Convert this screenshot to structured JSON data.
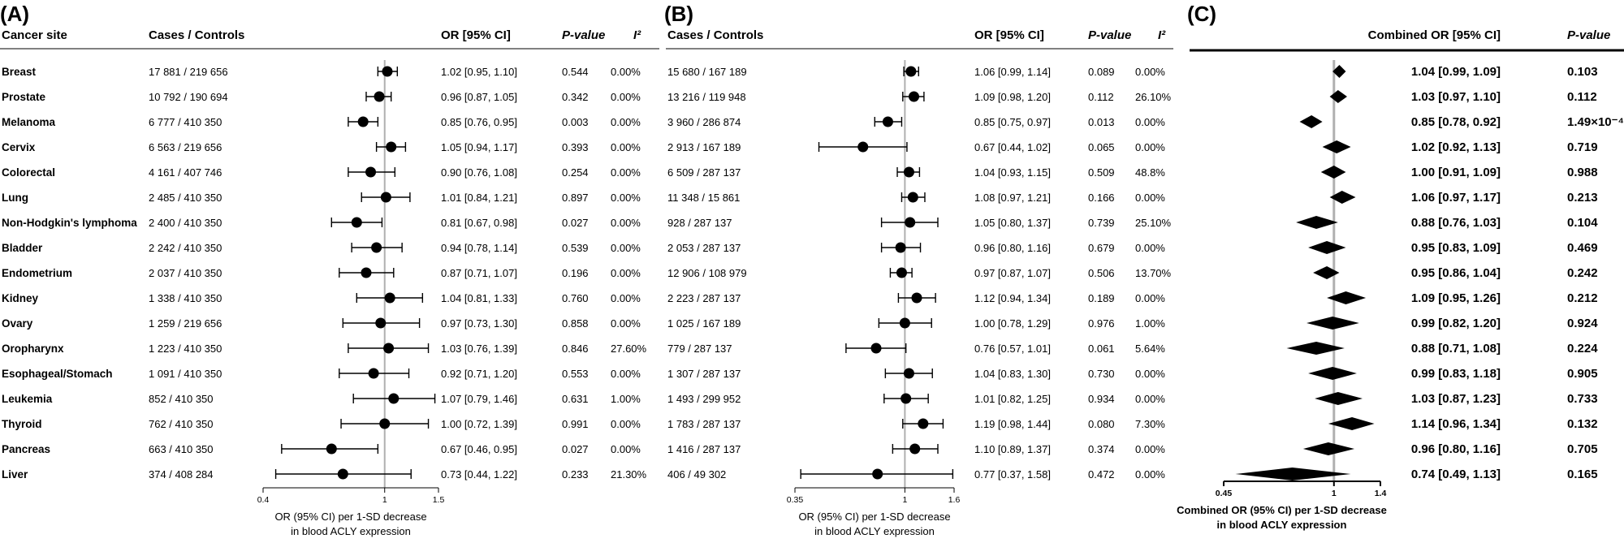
{
  "chart_data": [
    {
      "type": "forest",
      "panel_label": "(A)",
      "columns": {
        "site": "Cancer site",
        "cases": "Cases / Controls",
        "or": "OR [95% CI]",
        "p": "P-value",
        "i2": "I²"
      },
      "xlabel": [
        "OR (95% CI) per 1-SD decrease",
        "in blood ACLY expression"
      ],
      "ticks": [
        0.4,
        1,
        1.5
      ],
      "tick_labels": [
        "0.4",
        "1",
        "1.5"
      ],
      "xlim": [
        0.4,
        1.5
      ],
      "xscale": "log",
      "reference_line": 1,
      "rows": [
        {
          "site": "Breast",
          "cases": "17 881 / 219 656",
          "or": 1.02,
          "lo": 0.95,
          "hi": 1.1,
          "or_text": "1.02 [0.95, 1.10]",
          "p": "0.544",
          "i2": "0.00%"
        },
        {
          "site": "Prostate",
          "cases": "10 792 / 190 694",
          "or": 0.96,
          "lo": 0.87,
          "hi": 1.05,
          "or_text": "0.96 [0.87, 1.05]",
          "p": "0.342",
          "i2": "0.00%"
        },
        {
          "site": "Melanoma",
          "cases": "6 777 / 410 350",
          "or": 0.85,
          "lo": 0.76,
          "hi": 0.95,
          "or_text": "0.85 [0.76, 0.95]",
          "p": "0.003",
          "i2": "0.00%"
        },
        {
          "site": "Cervix",
          "cases": "6 563 / 219 656",
          "or": 1.05,
          "lo": 0.94,
          "hi": 1.17,
          "or_text": "1.05 [0.94, 1.17]",
          "p": "0.393",
          "i2": "0.00%"
        },
        {
          "site": "Colorectal",
          "cases": "4 161 / 407 746",
          "or": 0.9,
          "lo": 0.76,
          "hi": 1.08,
          "or_text": "0.90 [0.76, 1.08]",
          "p": "0.254",
          "i2": "0.00%"
        },
        {
          "site": "Lung",
          "cases": "2 485 / 410 350",
          "or": 1.01,
          "lo": 0.84,
          "hi": 1.21,
          "or_text": "1.01 [0.84, 1.21]",
          "p": "0.897",
          "i2": "0.00%"
        },
        {
          "site": "Non-Hodgkin's lymphoma",
          "cases": "2 400 / 410 350",
          "or": 0.81,
          "lo": 0.67,
          "hi": 0.98,
          "or_text": "0.81 [0.67, 0.98]",
          "p": "0.027",
          "i2": "0.00%"
        },
        {
          "site": "Bladder",
          "cases": "2 242 / 410 350",
          "or": 0.94,
          "lo": 0.78,
          "hi": 1.14,
          "or_text": "0.94 [0.78, 1.14]",
          "p": "0.539",
          "i2": "0.00%"
        },
        {
          "site": "Endometrium",
          "cases": "2 037 / 410 350",
          "or": 0.87,
          "lo": 0.71,
          "hi": 1.07,
          "or_text": "0.87 [0.71, 1.07]",
          "p": "0.196",
          "i2": "0.00%"
        },
        {
          "site": "Kidney",
          "cases": "1 338 / 410 350",
          "or": 1.04,
          "lo": 0.81,
          "hi": 1.33,
          "or_text": "1.04 [0.81, 1.33]",
          "p": "0.760",
          "i2": "0.00%"
        },
        {
          "site": "Ovary",
          "cases": "1 259 / 219 656",
          "or": 0.97,
          "lo": 0.73,
          "hi": 1.3,
          "or_text": "0.97 [0.73, 1.30]",
          "p": "0.858",
          "i2": "0.00%"
        },
        {
          "site": "Oropharynx",
          "cases": "1 223 / 410 350",
          "or": 1.03,
          "lo": 0.76,
          "hi": 1.39,
          "or_text": "1.03 [0.76, 1.39]",
          "p": "0.846",
          "i2": "27.60%"
        },
        {
          "site": "Esophageal/Stomach",
          "cases": "1 091 / 410 350",
          "or": 0.92,
          "lo": 0.71,
          "hi": 1.2,
          "or_text": "0.92 [0.71, 1.20]",
          "p": "0.553",
          "i2": "0.00%"
        },
        {
          "site": "Leukemia",
          "cases": "852 / 410 350",
          "or": 1.07,
          "lo": 0.79,
          "hi": 1.46,
          "or_text": "1.07 [0.79, 1.46]",
          "p": "0.631",
          "i2": "1.00%"
        },
        {
          "site": "Thyroid",
          "cases": "762 / 410 350",
          "or": 1.0,
          "lo": 0.72,
          "hi": 1.39,
          "or_text": "1.00 [0.72, 1.39]",
          "p": "0.991",
          "i2": "0.00%"
        },
        {
          "site": "Pancreas",
          "cases": "663 / 410 350",
          "or": 0.67,
          "lo": 0.46,
          "hi": 0.95,
          "or_text": "0.67 [0.46, 0.95]",
          "p": "0.027",
          "i2": "0.00%"
        },
        {
          "site": "Liver",
          "cases": "374 / 408 284",
          "or": 0.73,
          "lo": 0.44,
          "hi": 1.22,
          "or_text": "0.73 [0.44, 1.22]",
          "p": "0.233",
          "i2": "21.30%"
        }
      ]
    },
    {
      "type": "forest",
      "panel_label": "(B)",
      "columns": {
        "cases": "Cases / Controls",
        "or": "OR [95% CI]",
        "p": "P-value",
        "i2": "I²"
      },
      "xlabel": [
        "OR (95% CI) per 1-SD decrease",
        "in blood ACLY expression"
      ],
      "ticks": [
        0.35,
        1,
        1.6
      ],
      "tick_labels": [
        "0.35",
        "1",
        "1.6"
      ],
      "xlim": [
        0.35,
        1.6
      ],
      "xscale": "log",
      "reference_line": 1,
      "rows": [
        {
          "cases": "15 680 / 167 189",
          "or": 1.06,
          "lo": 0.99,
          "hi": 1.14,
          "or_text": "1.06 [0.99, 1.14]",
          "p": "0.089",
          "i2": "0.00%"
        },
        {
          "cases": "13 216 / 119 948",
          "or": 1.09,
          "lo": 0.98,
          "hi": 1.2,
          "or_text": "1.09 [0.98, 1.20]",
          "p": "0.112",
          "i2": "26.10%"
        },
        {
          "cases": "3 960 / 286 874",
          "or": 0.85,
          "lo": 0.75,
          "hi": 0.97,
          "or_text": "0.85 [0.75, 0.97]",
          "p": "0.013",
          "i2": "0.00%"
        },
        {
          "cases": "2 913 / 167 189",
          "or": 0.67,
          "lo": 0.44,
          "hi": 1.02,
          "or_text": "0.67 [0.44, 1.02]",
          "p": "0.065",
          "i2": "0.00%"
        },
        {
          "cases": "6 509 / 287 137",
          "or": 1.04,
          "lo": 0.93,
          "hi": 1.15,
          "or_text": "1.04 [0.93, 1.15]",
          "p": "0.509",
          "i2": "48.8%"
        },
        {
          "cases": "11 348 / 15 861",
          "or": 1.08,
          "lo": 0.97,
          "hi": 1.21,
          "or_text": "1.08 [0.97, 1.21]",
          "p": "0.166",
          "i2": "0.00%"
        },
        {
          "cases": "928 / 287 137",
          "or": 1.05,
          "lo": 0.8,
          "hi": 1.37,
          "or_text": "1.05 [0.80, 1.37]",
          "p": "0.739",
          "i2": "25.10%"
        },
        {
          "cases": "2 053 / 287 137",
          "or": 0.96,
          "lo": 0.8,
          "hi": 1.16,
          "or_text": "0.96 [0.80, 1.16]",
          "p": "0.679",
          "i2": "0.00%"
        },
        {
          "cases": "12 906 / 108 979",
          "or": 0.97,
          "lo": 0.87,
          "hi": 1.07,
          "or_text": "0.97 [0.87, 1.07]",
          "p": "0.506",
          "i2": "13.70%"
        },
        {
          "cases": "2 223 / 287 137",
          "or": 1.12,
          "lo": 0.94,
          "hi": 1.34,
          "or_text": "1.12 [0.94, 1.34]",
          "p": "0.189",
          "i2": "0.00%"
        },
        {
          "cases": "1 025 / 167 189",
          "or": 1.0,
          "lo": 0.78,
          "hi": 1.29,
          "or_text": "1.00 [0.78, 1.29]",
          "p": "0.976",
          "i2": "1.00%"
        },
        {
          "cases": "779 / 287 137",
          "or": 0.76,
          "lo": 0.57,
          "hi": 1.01,
          "or_text": "0.76 [0.57, 1.01]",
          "p": "0.061",
          "i2": "5.64%"
        },
        {
          "cases": "1 307 / 287 137",
          "or": 1.04,
          "lo": 0.83,
          "hi": 1.3,
          "or_text": "1.04 [0.83, 1.30]",
          "p": "0.730",
          "i2": "0.00%"
        },
        {
          "cases": "1 493 / 299 952",
          "or": 1.01,
          "lo": 0.82,
          "hi": 1.25,
          "or_text": "1.01 [0.82, 1.25]",
          "p": "0.934",
          "i2": "0.00%"
        },
        {
          "cases": "1 783 / 287 137",
          "or": 1.19,
          "lo": 0.98,
          "hi": 1.44,
          "or_text": "1.19 [0.98, 1.44]",
          "p": "0.080",
          "i2": "7.30%"
        },
        {
          "cases": "1 416 / 287 137",
          "or": 1.1,
          "lo": 0.89,
          "hi": 1.37,
          "or_text": "1.10 [0.89, 1.37]",
          "p": "0.374",
          "i2": "0.00%"
        },
        {
          "cases": "406 / 49 302",
          "or": 0.77,
          "lo": 0.37,
          "hi": 1.58,
          "or_text": "0.77 [0.37, 1.58]",
          "p": "0.472",
          "i2": "0.00%"
        }
      ]
    },
    {
      "type": "forest",
      "panel_label": "(C)",
      "columns": {
        "or": "Combined OR [95% CI]",
        "p": "P-value"
      },
      "xlabel": [
        "Combined OR (95% CI) per 1-SD decrease",
        "in blood ACLY expression"
      ],
      "ticks": [
        0.45,
        1,
        1.4
      ],
      "tick_labels": [
        "0.45",
        "1",
        "1.4"
      ],
      "xlim": [
        0.45,
        1.4
      ],
      "xscale": "log",
      "reference_line": 1,
      "rows": [
        {
          "or": 1.04,
          "lo": 0.99,
          "hi": 1.09,
          "or_text": "1.04 [0.99, 1.09]",
          "p": "0.103"
        },
        {
          "or": 1.03,
          "lo": 0.97,
          "hi": 1.1,
          "or_text": "1.03 [0.97, 1.10]",
          "p": "0.112"
        },
        {
          "or": 0.85,
          "lo": 0.78,
          "hi": 0.92,
          "or_text": "0.85 [0.78, 0.92]",
          "p": "1.49×10⁻⁴"
        },
        {
          "or": 1.02,
          "lo": 0.92,
          "hi": 1.13,
          "or_text": "1.02 [0.92, 1.13]",
          "p": "0.719"
        },
        {
          "or": 1.0,
          "lo": 0.91,
          "hi": 1.09,
          "or_text": "1.00 [0.91, 1.09]",
          "p": "0.988"
        },
        {
          "or": 1.06,
          "lo": 0.97,
          "hi": 1.17,
          "or_text": "1.06 [0.97, 1.17]",
          "p": "0.213"
        },
        {
          "or": 0.88,
          "lo": 0.76,
          "hi": 1.03,
          "or_text": "0.88 [0.76, 1.03]",
          "p": "0.104"
        },
        {
          "or": 0.95,
          "lo": 0.83,
          "hi": 1.09,
          "or_text": "0.95 [0.83, 1.09]",
          "p": "0.469"
        },
        {
          "or": 0.95,
          "lo": 0.86,
          "hi": 1.04,
          "or_text": "0.95 [0.86, 1.04]",
          "p": "0.242"
        },
        {
          "or": 1.09,
          "lo": 0.95,
          "hi": 1.26,
          "or_text": "1.09 [0.95, 1.26]",
          "p": "0.212"
        },
        {
          "or": 0.99,
          "lo": 0.82,
          "hi": 1.2,
          "or_text": "0.99 [0.82, 1.20]",
          "p": "0.924"
        },
        {
          "or": 0.88,
          "lo": 0.71,
          "hi": 1.08,
          "or_text": "0.88 [0.71, 1.08]",
          "p": "0.224"
        },
        {
          "or": 0.99,
          "lo": 0.83,
          "hi": 1.18,
          "or_text": "0.99 [0.83, 1.18]",
          "p": "0.905"
        },
        {
          "or": 1.03,
          "lo": 0.87,
          "hi": 1.23,
          "or_text": "1.03 [0.87, 1.23]",
          "p": "0.733"
        },
        {
          "or": 1.14,
          "lo": 0.96,
          "hi": 1.34,
          "or_text": "1.14 [0.96, 1.34]",
          "p": "0.132"
        },
        {
          "or": 0.96,
          "lo": 0.8,
          "hi": 1.16,
          "or_text": "0.96 [0.80, 1.16]",
          "p": "0.705"
        },
        {
          "or": 0.74,
          "lo": 0.49,
          "hi": 1.13,
          "or_text": "0.74 [0.49, 1.13]",
          "p": "0.165"
        }
      ]
    }
  ],
  "colors": {
    "reference_line": "#b0b0b0",
    "marks": "#000000"
  }
}
